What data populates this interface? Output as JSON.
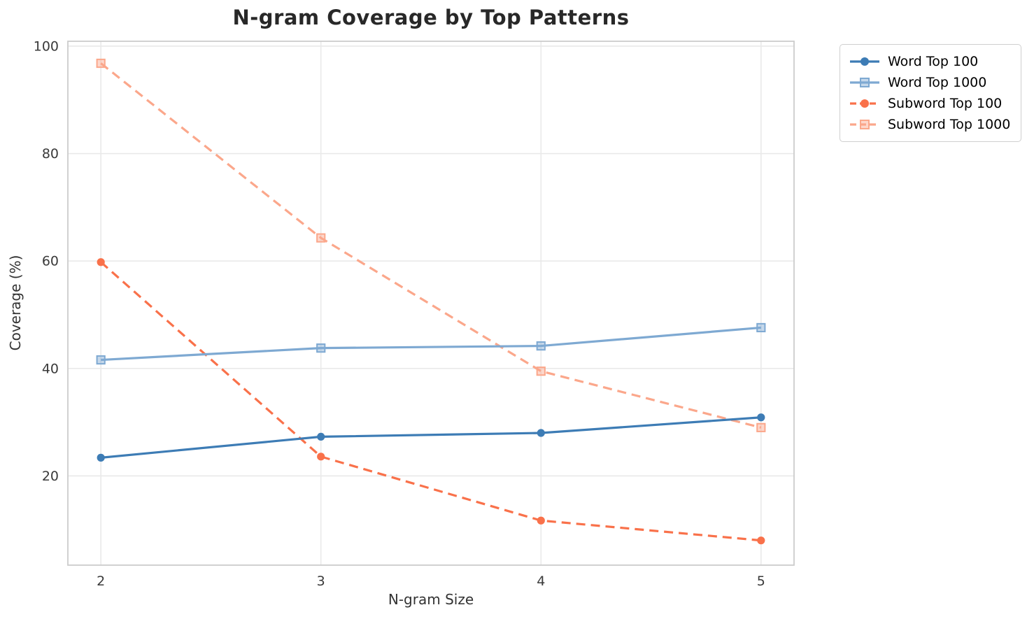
{
  "chart_data": {
    "type": "line",
    "title": "N-gram Coverage by Top Patterns",
    "xlabel": "N-gram Size",
    "ylabel": "Coverage (%)",
    "x": [
      2,
      3,
      4,
      5
    ],
    "xticks": [
      2,
      3,
      4,
      5
    ],
    "yticks": [
      20,
      40,
      60,
      80,
      100
    ],
    "xlim": [
      1.85,
      5.15
    ],
    "ylim": [
      3.4,
      100.9
    ],
    "grid": true,
    "legend_position": "outside upper right",
    "series": [
      {
        "name": "Word Top 100",
        "values": [
          23.4,
          27.3,
          28.0,
          30.9
        ],
        "color": "#3d7cb5",
        "style": "solid",
        "marker": "circle"
      },
      {
        "name": "Word Top 1000",
        "values": [
          41.6,
          43.8,
          44.2,
          47.6
        ],
        "color": "#7ea9d2",
        "style": "solid",
        "marker": "square"
      },
      {
        "name": "Subword Top 100",
        "values": [
          59.8,
          23.6,
          11.7,
          8.0
        ],
        "color": "#f9714a",
        "style": "dashed",
        "marker": "circle"
      },
      {
        "name": "Subword Top 1000",
        "values": [
          96.8,
          64.3,
          39.5,
          29.0
        ],
        "color": "#fba78b",
        "style": "dashed",
        "marker": "square"
      }
    ]
  },
  "style": {
    "background": "#ffffff",
    "grid_color": "#e9e9e9",
    "spine_color": "#cccccc",
    "title_color": "#282828",
    "tick_color": "#3a3a3a",
    "label_color": "#333333"
  }
}
